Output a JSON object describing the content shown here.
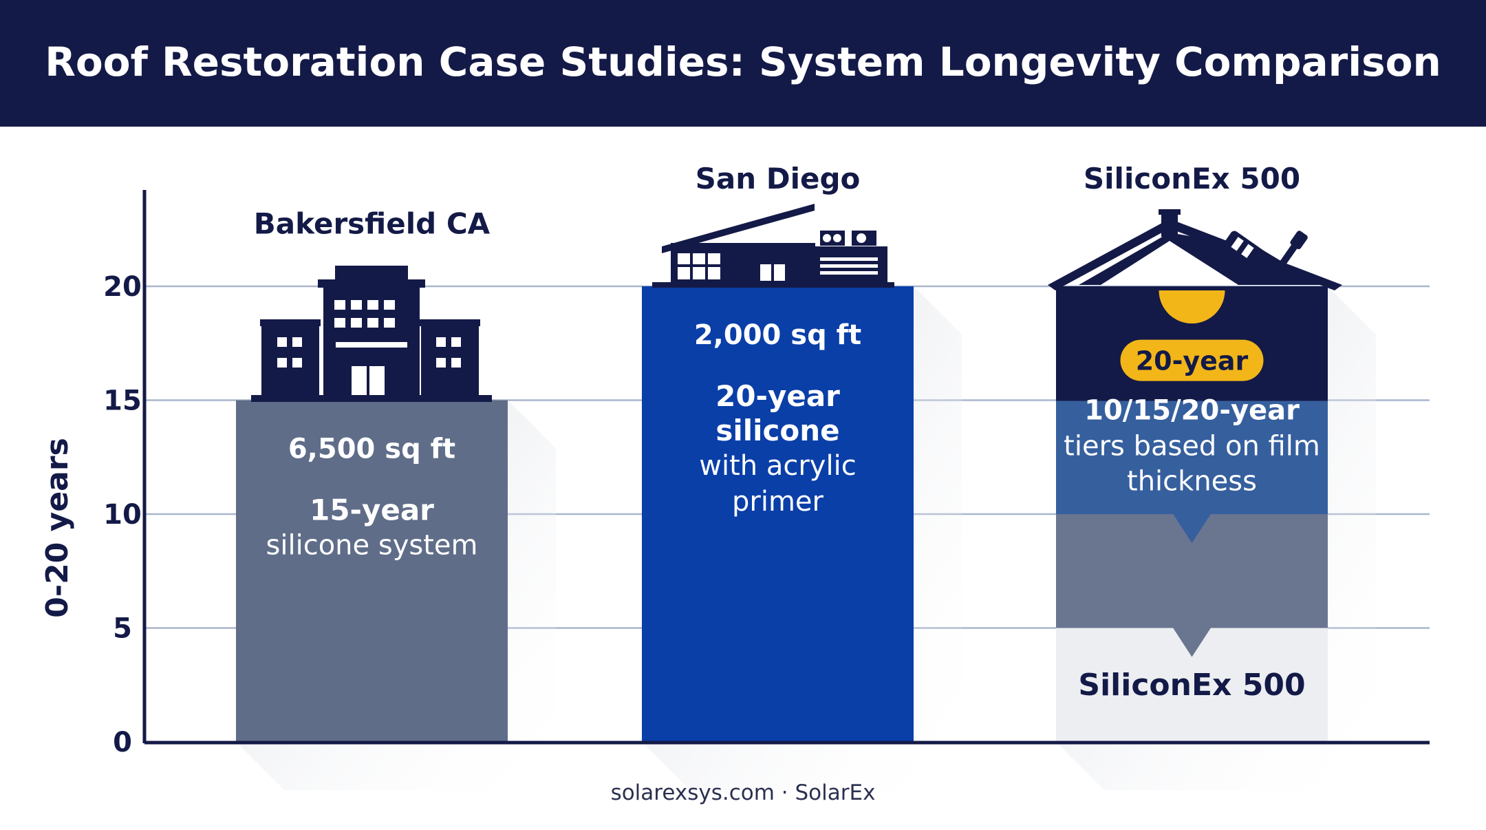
{
  "header": {
    "title": "Roof Restoration Case Studies: System Longevity Comparison"
  },
  "footer": {
    "source": "solarexsys.com · SolarEx"
  },
  "colors": {
    "navy": "#141a47",
    "slate": "#5f6d89",
    "blue": "#0a3fa8",
    "tier_blue": "#365f9e",
    "tier_gray": "#6a7590",
    "light_gray": "#eceef2",
    "gold": "#f2b619",
    "grid": "#a9b6cc"
  },
  "icons": [
    "office-building-icon",
    "modern-house-icon",
    "house-roller-icon",
    "sun-icon"
  ],
  "chart_data": {
    "type": "bar",
    "title": "Roof Restoration Case Studies: System Longevity Comparison",
    "ylabel": "0-20 years",
    "ylim": [
      0,
      20
    ],
    "yticks": [
      0,
      5,
      10,
      15,
      20
    ],
    "grid": true,
    "categories": [
      "Bakersfield CA",
      "San Diego",
      "SiliconEx 500"
    ],
    "values": [
      15,
      20,
      20
    ],
    "bars": [
      {
        "label": "Bakersfield CA",
        "value": 15,
        "area": "6,500 sq ft",
        "line_bold": "15-year",
        "desc": "silicone system"
      },
      {
        "label": "San Diego",
        "value": 20,
        "area": "2,000 sq ft",
        "line_bold": "20-year silicone",
        "desc": "with acrylic primer"
      },
      {
        "label": "SiliconEx 500",
        "value": 20,
        "badge": "20-year",
        "line_bold": "10/15/20-year",
        "desc": "tiers based on film thickness",
        "base_label": "SiliconEx 500",
        "tiers": [
          5,
          10,
          15,
          20
        ]
      }
    ]
  }
}
